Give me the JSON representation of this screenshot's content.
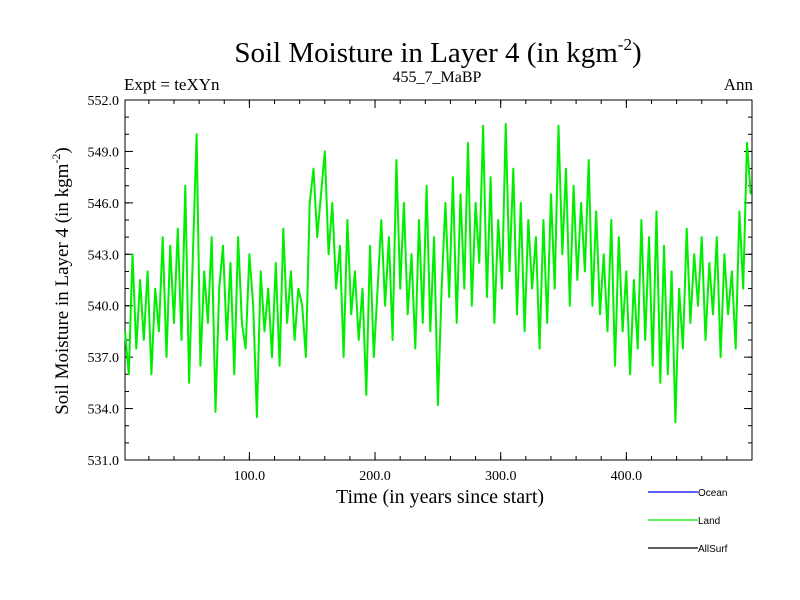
{
  "header": {
    "title_main": "Soil Moisture in Layer 4 (in kgm",
    "title_sup": "-2",
    "title_close": ")",
    "left_label": "Expt = teXYn",
    "center_label": "455_7_MaBP",
    "right_label": "Ann"
  },
  "chart_data": {
    "type": "line",
    "title": "Soil Moisture in Layer 4 (in kgm-2)",
    "xlabel": "Time (in years since start)",
    "ylabel_main": "Soil Moisture in Layer 4 (in kgm",
    "ylabel_sup": "-2",
    "ylabel_close": ")",
    "xlim": [
      1,
      500
    ],
    "ylim": [
      531.0,
      552.0
    ],
    "xticks": [
      100,
      200,
      300,
      400
    ],
    "xtick_labels": [
      "100.0",
      "200.0",
      "300.0",
      "400.0"
    ],
    "yticks": [
      531,
      534,
      537,
      540,
      543,
      546,
      549,
      552
    ],
    "ytick_labels": [
      "531.0",
      "534.0",
      "537.0",
      "540.0",
      "543.0",
      "546.0",
      "549.0",
      "552.0"
    ],
    "series": [
      {
        "name": "Ocean",
        "color": "#0000ff",
        "values": []
      },
      {
        "name": "Land",
        "color": "#00ee00",
        "x": [
          1,
          4,
          7,
          10,
          13,
          16,
          19,
          22,
          25,
          28,
          31,
          34,
          37,
          40,
          43,
          46,
          49,
          52,
          55,
          58,
          61,
          64,
          67,
          70,
          73,
          76,
          79,
          82,
          85,
          88,
          91,
          94,
          97,
          100,
          103,
          106,
          109,
          112,
          115,
          118,
          121,
          124,
          127,
          130,
          133,
          136,
          139,
          142,
          145,
          148,
          151,
          154,
          157,
          160,
          163,
          166,
          169,
          172,
          175,
          178,
          181,
          184,
          187,
          190,
          193,
          196,
          199,
          202,
          205,
          208,
          211,
          214,
          217,
          220,
          223,
          226,
          229,
          232,
          235,
          238,
          241,
          244,
          247,
          250,
          253,
          256,
          259,
          262,
          265,
          268,
          271,
          274,
          277,
          280,
          283,
          286,
          289,
          292,
          295,
          298,
          301,
          304,
          307,
          310,
          313,
          316,
          319,
          322,
          325,
          328,
          331,
          334,
          337,
          340,
          343,
          346,
          349,
          352,
          355,
          358,
          361,
          364,
          367,
          370,
          373,
          376,
          379,
          382,
          385,
          388,
          391,
          394,
          397,
          400,
          403,
          406,
          409,
          412,
          415,
          418,
          421,
          424,
          427,
          430,
          433,
          436,
          439,
          442,
          445,
          448,
          451,
          454,
          457,
          460,
          463,
          466,
          469,
          472,
          475,
          478,
          481,
          484,
          487,
          490,
          493,
          496,
          499
        ],
        "values": [
          538.5,
          536.0,
          543.0,
          537.5,
          541.5,
          538.0,
          542.0,
          536.0,
          541.0,
          538.5,
          544.0,
          537.0,
          543.5,
          539.0,
          544.5,
          538.0,
          547.0,
          535.5,
          543.0,
          550.0,
          536.5,
          542.0,
          539.0,
          544.0,
          533.8,
          541.0,
          543.5,
          538.0,
          542.5,
          536.0,
          544.0,
          539.0,
          537.5,
          543.0,
          540.0,
          533.5,
          542.0,
          538.5,
          541.0,
          537.0,
          542.5,
          536.5,
          544.5,
          539.0,
          542.0,
          538.0,
          541.0,
          540.0,
          537.0,
          546.0,
          548.0,
          544.0,
          546.5,
          549.0,
          543.0,
          546.0,
          541.0,
          543.5,
          537.0,
          545.0,
          539.5,
          542.0,
          538.0,
          541.0,
          534.8,
          543.5,
          537.0,
          541.0,
          545.0,
          540.0,
          544.0,
          538.0,
          548.5,
          541.0,
          546.0,
          539.5,
          543.0,
          537.5,
          545.0,
          539.0,
          547.0,
          538.5,
          544.0,
          534.2,
          541.0,
          546.0,
          540.5,
          547.5,
          539.0,
          546.5,
          541.0,
          549.5,
          540.0,
          546.0,
          542.5,
          550.5,
          540.5,
          547.5,
          539.0,
          545.0,
          541.0,
          550.6,
          542.0,
          548.0,
          539.5,
          546.0,
          538.5,
          545.0,
          541.0,
          544.0,
          537.5,
          545.0,
          539.0,
          546.5,
          541.0,
          550.5,
          543.0,
          548.0,
          540.0,
          547.0,
          541.5,
          546.0,
          542.0,
          548.5,
          540.0,
          545.5,
          539.5,
          543.0,
          538.5,
          545.0,
          536.5,
          544.0,
          538.5,
          542.0,
          536.0,
          541.5,
          537.5,
          545.0,
          538.0,
          544.0,
          536.5,
          545.5,
          535.5,
          543.5,
          536.0,
          542.0,
          533.2,
          541.0,
          537.5,
          544.5,
          539.0,
          543.0,
          540.0,
          544.0,
          538.0,
          542.5,
          539.5,
          544.0,
          537.0,
          543.0,
          539.5,
          542.0,
          537.5,
          545.5,
          541.0,
          549.5,
          546.5
        ]
      },
      {
        "name": "AllSurf",
        "color": "#000000",
        "values": []
      }
    ],
    "legend_position": "bottom-right",
    "grid": false
  }
}
